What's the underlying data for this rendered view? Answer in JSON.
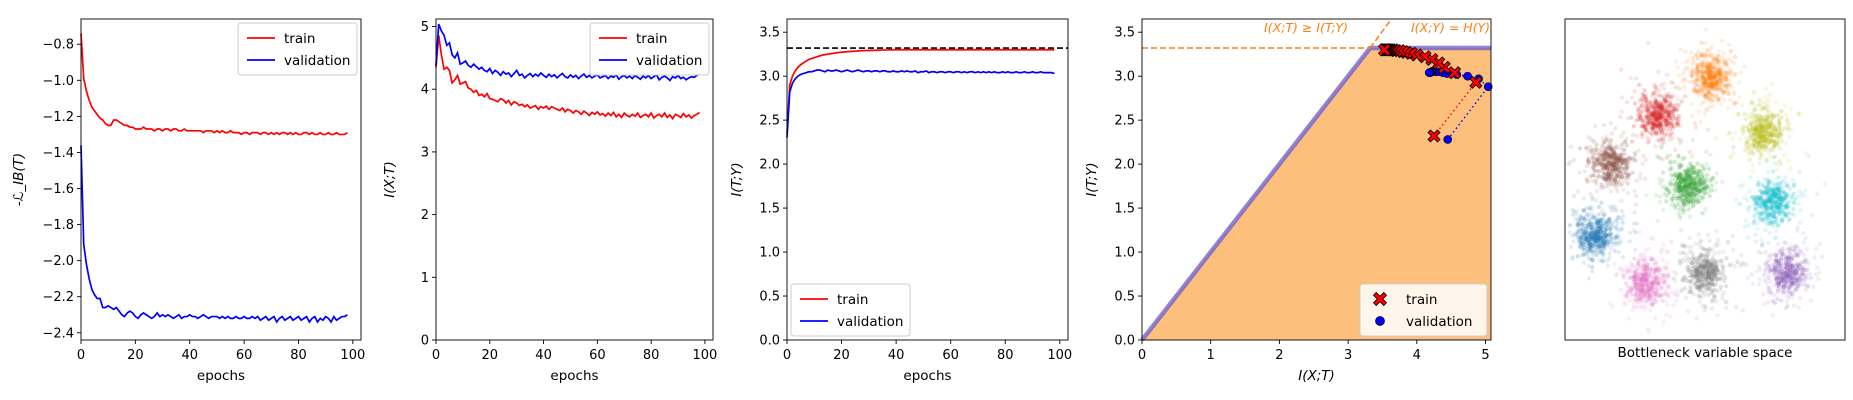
{
  "chart_data": [
    {
      "type": "line",
      "ylabel": "-ℒ_IB(T)",
      "xlabel": "epochs",
      "xlim": [
        0,
        103
      ],
      "ylim": [
        -2.44,
        -0.66
      ],
      "xticks": [
        0,
        20,
        40,
        60,
        80,
        100
      ],
      "yticks": [
        -2.4,
        -2.2,
        -2.0,
        -1.8,
        -1.6,
        -1.4,
        -1.2,
        -1.0,
        -0.8
      ],
      "legend_loc": "upper right",
      "series": [
        {
          "name": "train",
          "color": "#ff0000",
          "values": [
            -0.74,
            -0.99,
            -1.06,
            -1.11,
            -1.15,
            -1.17,
            -1.19,
            -1.21,
            -1.22,
            -1.24,
            -1.25,
            -1.25,
            -1.22,
            -1.22,
            -1.23,
            -1.24,
            -1.25,
            -1.25,
            -1.26,
            -1.26,
            -1.27,
            -1.27,
            -1.27,
            -1.26,
            -1.27,
            -1.27,
            -1.27,
            -1.28,
            -1.27,
            -1.27,
            -1.28,
            -1.27,
            -1.27,
            -1.28,
            -1.27,
            -1.27,
            -1.28,
            -1.28,
            -1.27,
            -1.28,
            -1.28,
            -1.28,
            -1.28,
            -1.28,
            -1.28,
            -1.29,
            -1.28,
            -1.28,
            -1.28,
            -1.29,
            -1.28,
            -1.29,
            -1.28,
            -1.29,
            -1.29,
            -1.28,
            -1.29,
            -1.29,
            -1.29,
            -1.3,
            -1.29,
            -1.29,
            -1.3,
            -1.29,
            -1.29,
            -1.29,
            -1.3,
            -1.29,
            -1.29,
            -1.3,
            -1.29,
            -1.3,
            -1.29,
            -1.3,
            -1.29,
            -1.29,
            -1.3,
            -1.29,
            -1.3,
            -1.29,
            -1.3,
            -1.3,
            -1.29,
            -1.29,
            -1.3,
            -1.29,
            -1.3,
            -1.3,
            -1.29,
            -1.3,
            -1.3,
            -1.29,
            -1.3,
            -1.3,
            -1.29,
            -1.3,
            -1.3,
            -1.3,
            -1.29
          ]
        },
        {
          "name": "validation",
          "color": "#0000ff",
          "values": [
            -1.36,
            -1.91,
            -2.02,
            -2.1,
            -2.16,
            -2.19,
            -2.21,
            -2.21,
            -2.26,
            -2.26,
            -2.25,
            -2.26,
            -2.27,
            -2.26,
            -2.28,
            -2.3,
            -2.31,
            -2.29,
            -2.28,
            -2.29,
            -2.31,
            -2.32,
            -2.3,
            -2.29,
            -2.3,
            -2.31,
            -2.32,
            -2.31,
            -2.29,
            -2.31,
            -2.3,
            -2.31,
            -2.3,
            -2.31,
            -2.32,
            -2.31,
            -2.3,
            -2.32,
            -2.31,
            -2.31,
            -2.3,
            -2.31,
            -2.31,
            -2.32,
            -2.31,
            -2.3,
            -2.31,
            -2.32,
            -2.31,
            -2.31,
            -2.31,
            -2.32,
            -2.31,
            -2.32,
            -2.31,
            -2.32,
            -2.32,
            -2.31,
            -2.32,
            -2.32,
            -2.31,
            -2.32,
            -2.32,
            -2.31,
            -2.32,
            -2.31,
            -2.33,
            -2.32,
            -2.31,
            -2.33,
            -2.32,
            -2.31,
            -2.34,
            -2.32,
            -2.31,
            -2.33,
            -2.32,
            -2.31,
            -2.33,
            -2.32,
            -2.31,
            -2.33,
            -2.32,
            -2.31,
            -2.34,
            -2.32,
            -2.31,
            -2.34,
            -2.32,
            -2.33,
            -2.31,
            -2.32,
            -2.34,
            -2.31,
            -2.33,
            -2.32,
            -2.31,
            -2.31,
            -2.3
          ]
        }
      ]
    },
    {
      "type": "line",
      "ylabel": "I(X;T)",
      "xlabel": "epochs",
      "xlim": [
        0,
        103
      ],
      "ylim": [
        0,
        5.12
      ],
      "xticks": [
        0,
        20,
        40,
        60,
        80,
        100
      ],
      "yticks": [
        0,
        1,
        2,
        3,
        4,
        5
      ],
      "legend_loc": "upper right",
      "series": [
        {
          "name": "train",
          "color": "#ff0000",
          "values": [
            4.35,
            4.86,
            4.55,
            4.32,
            4.35,
            4.3,
            4.1,
            4.15,
            4.22,
            4.08,
            4.1,
            4.12,
            4.02,
            4.0,
            3.95,
            3.98,
            3.9,
            3.92,
            3.88,
            3.93,
            3.85,
            3.84,
            3.82,
            3.8,
            3.85,
            3.83,
            3.78,
            3.82,
            3.75,
            3.8,
            3.78,
            3.74,
            3.76,
            3.72,
            3.75,
            3.7,
            3.72,
            3.74,
            3.68,
            3.72,
            3.7,
            3.73,
            3.68,
            3.72,
            3.7,
            3.68,
            3.66,
            3.7,
            3.64,
            3.68,
            3.66,
            3.62,
            3.66,
            3.64,
            3.6,
            3.65,
            3.62,
            3.58,
            3.63,
            3.6,
            3.64,
            3.59,
            3.61,
            3.57,
            3.62,
            3.58,
            3.63,
            3.56,
            3.6,
            3.55,
            3.62,
            3.58,
            3.56,
            3.6,
            3.57,
            3.62,
            3.55,
            3.58,
            3.6,
            3.56,
            3.62,
            3.54,
            3.58,
            3.6,
            3.56,
            3.62,
            3.55,
            3.59,
            3.53,
            3.6,
            3.58,
            3.55,
            3.61,
            3.56,
            3.59,
            3.54,
            3.58,
            3.6,
            3.63
          ]
        },
        {
          "name": "validation",
          "color": "#0000ff",
          "values": [
            4.38,
            5.04,
            4.93,
            4.86,
            4.7,
            4.74,
            4.55,
            4.5,
            4.58,
            4.4,
            4.42,
            4.45,
            4.38,
            4.35,
            4.4,
            4.36,
            4.32,
            4.35,
            4.3,
            4.28,
            4.33,
            4.25,
            4.3,
            4.27,
            4.22,
            4.28,
            4.24,
            4.26,
            4.2,
            4.25,
            4.3,
            4.22,
            4.24,
            4.18,
            4.22,
            4.25,
            4.2,
            4.24,
            4.21,
            4.26,
            4.22,
            4.19,
            4.24,
            4.2,
            4.23,
            4.18,
            4.22,
            4.25,
            4.2,
            4.18,
            4.23,
            4.19,
            4.22,
            4.17,
            4.21,
            4.24,
            4.19,
            4.22,
            4.18,
            4.21,
            4.23,
            4.18,
            4.2,
            4.22,
            4.17,
            4.21,
            4.19,
            4.23,
            4.16,
            4.2,
            4.22,
            4.18,
            4.21,
            4.17,
            4.22,
            4.19,
            4.16,
            4.21,
            4.18,
            4.22,
            4.17,
            4.2,
            4.23,
            4.15,
            4.19,
            4.21,
            4.18,
            4.14,
            4.2,
            4.18,
            4.22,
            4.17,
            4.19,
            4.15,
            4.18,
            4.2,
            4.19,
            4.22,
            4.25
          ]
        }
      ]
    },
    {
      "type": "line",
      "ylabel": "I(T;Y)",
      "xlabel": "epochs",
      "xlim": [
        0,
        103
      ],
      "ylim": [
        0,
        3.65
      ],
      "xticks": [
        0,
        20,
        40,
        60,
        80,
        100
      ],
      "yticks": [
        0.0,
        0.5,
        1.0,
        1.5,
        2.0,
        2.5,
        3.0,
        3.5
      ],
      "reference_line": {
        "y": 3.32,
        "style": "dashed",
        "color": "#000000"
      },
      "legend_loc": "lower left",
      "series": [
        {
          "name": "train",
          "color": "#ff0000",
          "values": [
            2.35,
            2.9,
            3.0,
            3.06,
            3.1,
            3.13,
            3.15,
            3.17,
            3.19,
            3.2,
            3.21,
            3.22,
            3.23,
            3.24,
            3.245,
            3.25,
            3.255,
            3.26,
            3.265,
            3.27,
            3.272,
            3.275,
            3.278,
            3.28,
            3.282,
            3.284,
            3.286,
            3.288,
            3.29,
            3.291,
            3.292,
            3.293,
            3.294,
            3.295,
            3.296,
            3.297,
            3.298,
            3.298,
            3.299,
            3.3,
            3.3,
            3.3,
            3.3,
            3.3,
            3.3,
            3.3,
            3.3,
            3.3,
            3.3,
            3.3,
            3.3,
            3.3,
            3.3,
            3.3,
            3.3,
            3.3,
            3.3,
            3.3,
            3.3,
            3.3,
            3.3,
            3.3,
            3.3,
            3.3,
            3.3,
            3.3,
            3.3,
            3.3,
            3.3,
            3.3,
            3.3,
            3.3,
            3.3,
            3.3,
            3.3,
            3.3,
            3.3,
            3.3,
            3.3,
            3.3,
            3.3,
            3.3,
            3.3,
            3.3,
            3.3,
            3.3,
            3.3,
            3.3,
            3.3,
            3.3,
            3.3,
            3.3,
            3.3,
            3.3,
            3.3,
            3.3,
            3.3,
            3.3,
            3.3
          ]
        },
        {
          "name": "validation",
          "color": "#0000ff",
          "values": [
            2.3,
            2.82,
            2.92,
            2.97,
            3.0,
            3.02,
            3.03,
            3.04,
            3.05,
            3.05,
            3.06,
            3.07,
            3.07,
            3.06,
            3.05,
            3.07,
            3.06,
            3.06,
            3.07,
            3.06,
            3.05,
            3.06,
            3.07,
            3.06,
            3.05,
            3.06,
            3.07,
            3.06,
            3.05,
            3.06,
            3.06,
            3.05,
            3.06,
            3.06,
            3.05,
            3.06,
            3.06,
            3.05,
            3.05,
            3.06,
            3.05,
            3.05,
            3.06,
            3.05,
            3.06,
            3.05,
            3.05,
            3.06,
            3.04,
            3.05,
            3.05,
            3.06,
            3.04,
            3.05,
            3.05,
            3.04,
            3.05,
            3.05,
            3.04,
            3.05,
            3.05,
            3.04,
            3.05,
            3.05,
            3.04,
            3.05,
            3.04,
            3.05,
            3.05,
            3.04,
            3.05,
            3.04,
            3.05,
            3.04,
            3.05,
            3.04,
            3.05,
            3.04,
            3.04,
            3.05,
            3.04,
            3.05,
            3.04,
            3.04,
            3.05,
            3.04,
            3.04,
            3.05,
            3.04,
            3.04,
            3.05,
            3.04,
            3.04,
            3.05,
            3.04,
            3.04,
            3.04,
            3.04,
            3.03
          ]
        }
      ]
    },
    {
      "type": "scatter",
      "xlabel": "I(X;T)",
      "ylabel": "I(T;Y)",
      "xlim": [
        0,
        5.08
      ],
      "ylim": [
        0,
        3.65
      ],
      "xticks": [
        0,
        1,
        2,
        3,
        4,
        5
      ],
      "yticks": [
        0.0,
        0.5,
        1.0,
        1.5,
        2.0,
        2.5,
        3.0,
        3.5
      ],
      "H_Y": 3.32,
      "annotations": [
        "I(X;T) ≥ I(T;Y)",
        "I(X;Y) = H(Y)"
      ],
      "fill_color": "#fdbf7c",
      "annotation_color": "#ff7f0e",
      "boundary_color": "#6a5acd",
      "legend_loc": "lower right",
      "series": [
        {
          "name": "train",
          "marker": "X",
          "color": "#ff0000",
          "x": [
            4.25,
            4.86,
            4.55,
            4.4,
            4.32,
            4.22,
            4.12,
            4.0,
            3.92,
            3.85,
            3.8,
            3.75,
            3.7,
            3.66,
            3.62,
            3.6,
            3.58,
            3.56,
            3.55,
            3.54,
            3.53
          ],
          "y": [
            2.32,
            2.93,
            3.04,
            3.1,
            3.15,
            3.19,
            3.22,
            3.24,
            3.26,
            3.27,
            3.28,
            3.29,
            3.29,
            3.3,
            3.3,
            3.3,
            3.3,
            3.3,
            3.3,
            3.3,
            3.3
          ]
        },
        {
          "name": "validation",
          "marker": "o",
          "color": "#0000ff",
          "x": [
            4.45,
            5.04,
            4.9,
            4.74,
            4.58,
            4.44,
            4.38,
            4.33,
            4.28,
            4.24,
            4.22,
            4.21,
            4.2,
            4.19,
            4.18
          ],
          "y": [
            2.28,
            2.88,
            2.97,
            3.0,
            3.02,
            3.03,
            3.04,
            3.05,
            3.05,
            3.06,
            3.05,
            3.05,
            3.04,
            3.04,
            3.04
          ]
        }
      ]
    },
    {
      "type": "scatter",
      "xlabel": "Bottleneck variable space",
      "clusters": [
        {
          "color": "#ff7f0e",
          "cx": 0.52,
          "cy": 0.82
        },
        {
          "color": "#d62728",
          "cx": 0.33,
          "cy": 0.7
        },
        {
          "color": "#bcbd22",
          "cx": 0.71,
          "cy": 0.65
        },
        {
          "color": "#8c564b",
          "cx": 0.16,
          "cy": 0.55
        },
        {
          "color": "#2ca02c",
          "cx": 0.44,
          "cy": 0.48
        },
        {
          "color": "#17becf",
          "cx": 0.74,
          "cy": 0.43
        },
        {
          "color": "#1f77b4",
          "cx": 0.11,
          "cy": 0.33
        },
        {
          "color": "#7f7f7f",
          "cx": 0.5,
          "cy": 0.21
        },
        {
          "color": "#e377c2",
          "cx": 0.29,
          "cy": 0.18
        },
        {
          "color": "#9467bd",
          "cx": 0.79,
          "cy": 0.21
        }
      ]
    }
  ]
}
